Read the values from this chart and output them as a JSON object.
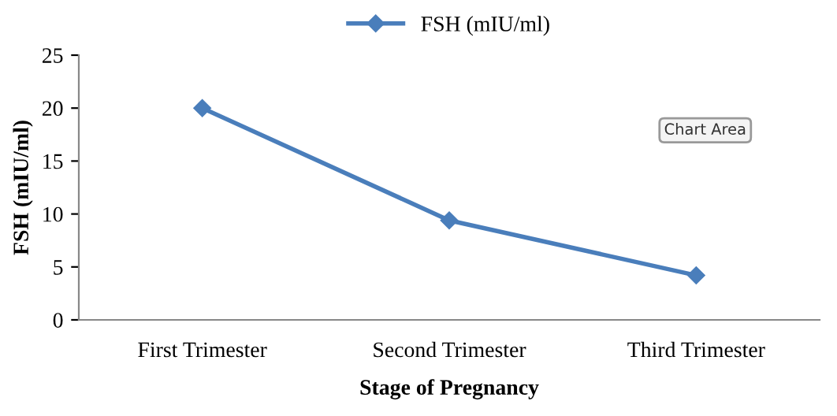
{
  "chart_data": {
    "type": "line",
    "xlabel": "Stage of Pregnancy",
    "ylabel": "FSH (mIU/ml)",
    "categories": [
      "First Trimester",
      "Second Trimester",
      "Third Trimester"
    ],
    "series": [
      {
        "name": "FSH (mIU/ml)",
        "color": "#4a7ebb",
        "values": [
          20,
          9.4,
          4.2
        ]
      }
    ],
    "ylim": [
      0,
      25
    ],
    "yticks": [
      0,
      5,
      10,
      15,
      20,
      25
    ],
    "grid": false,
    "legend": "top",
    "marker": "diamond",
    "line_style": "solid",
    "annotations": [
      "Chart Area"
    ]
  }
}
